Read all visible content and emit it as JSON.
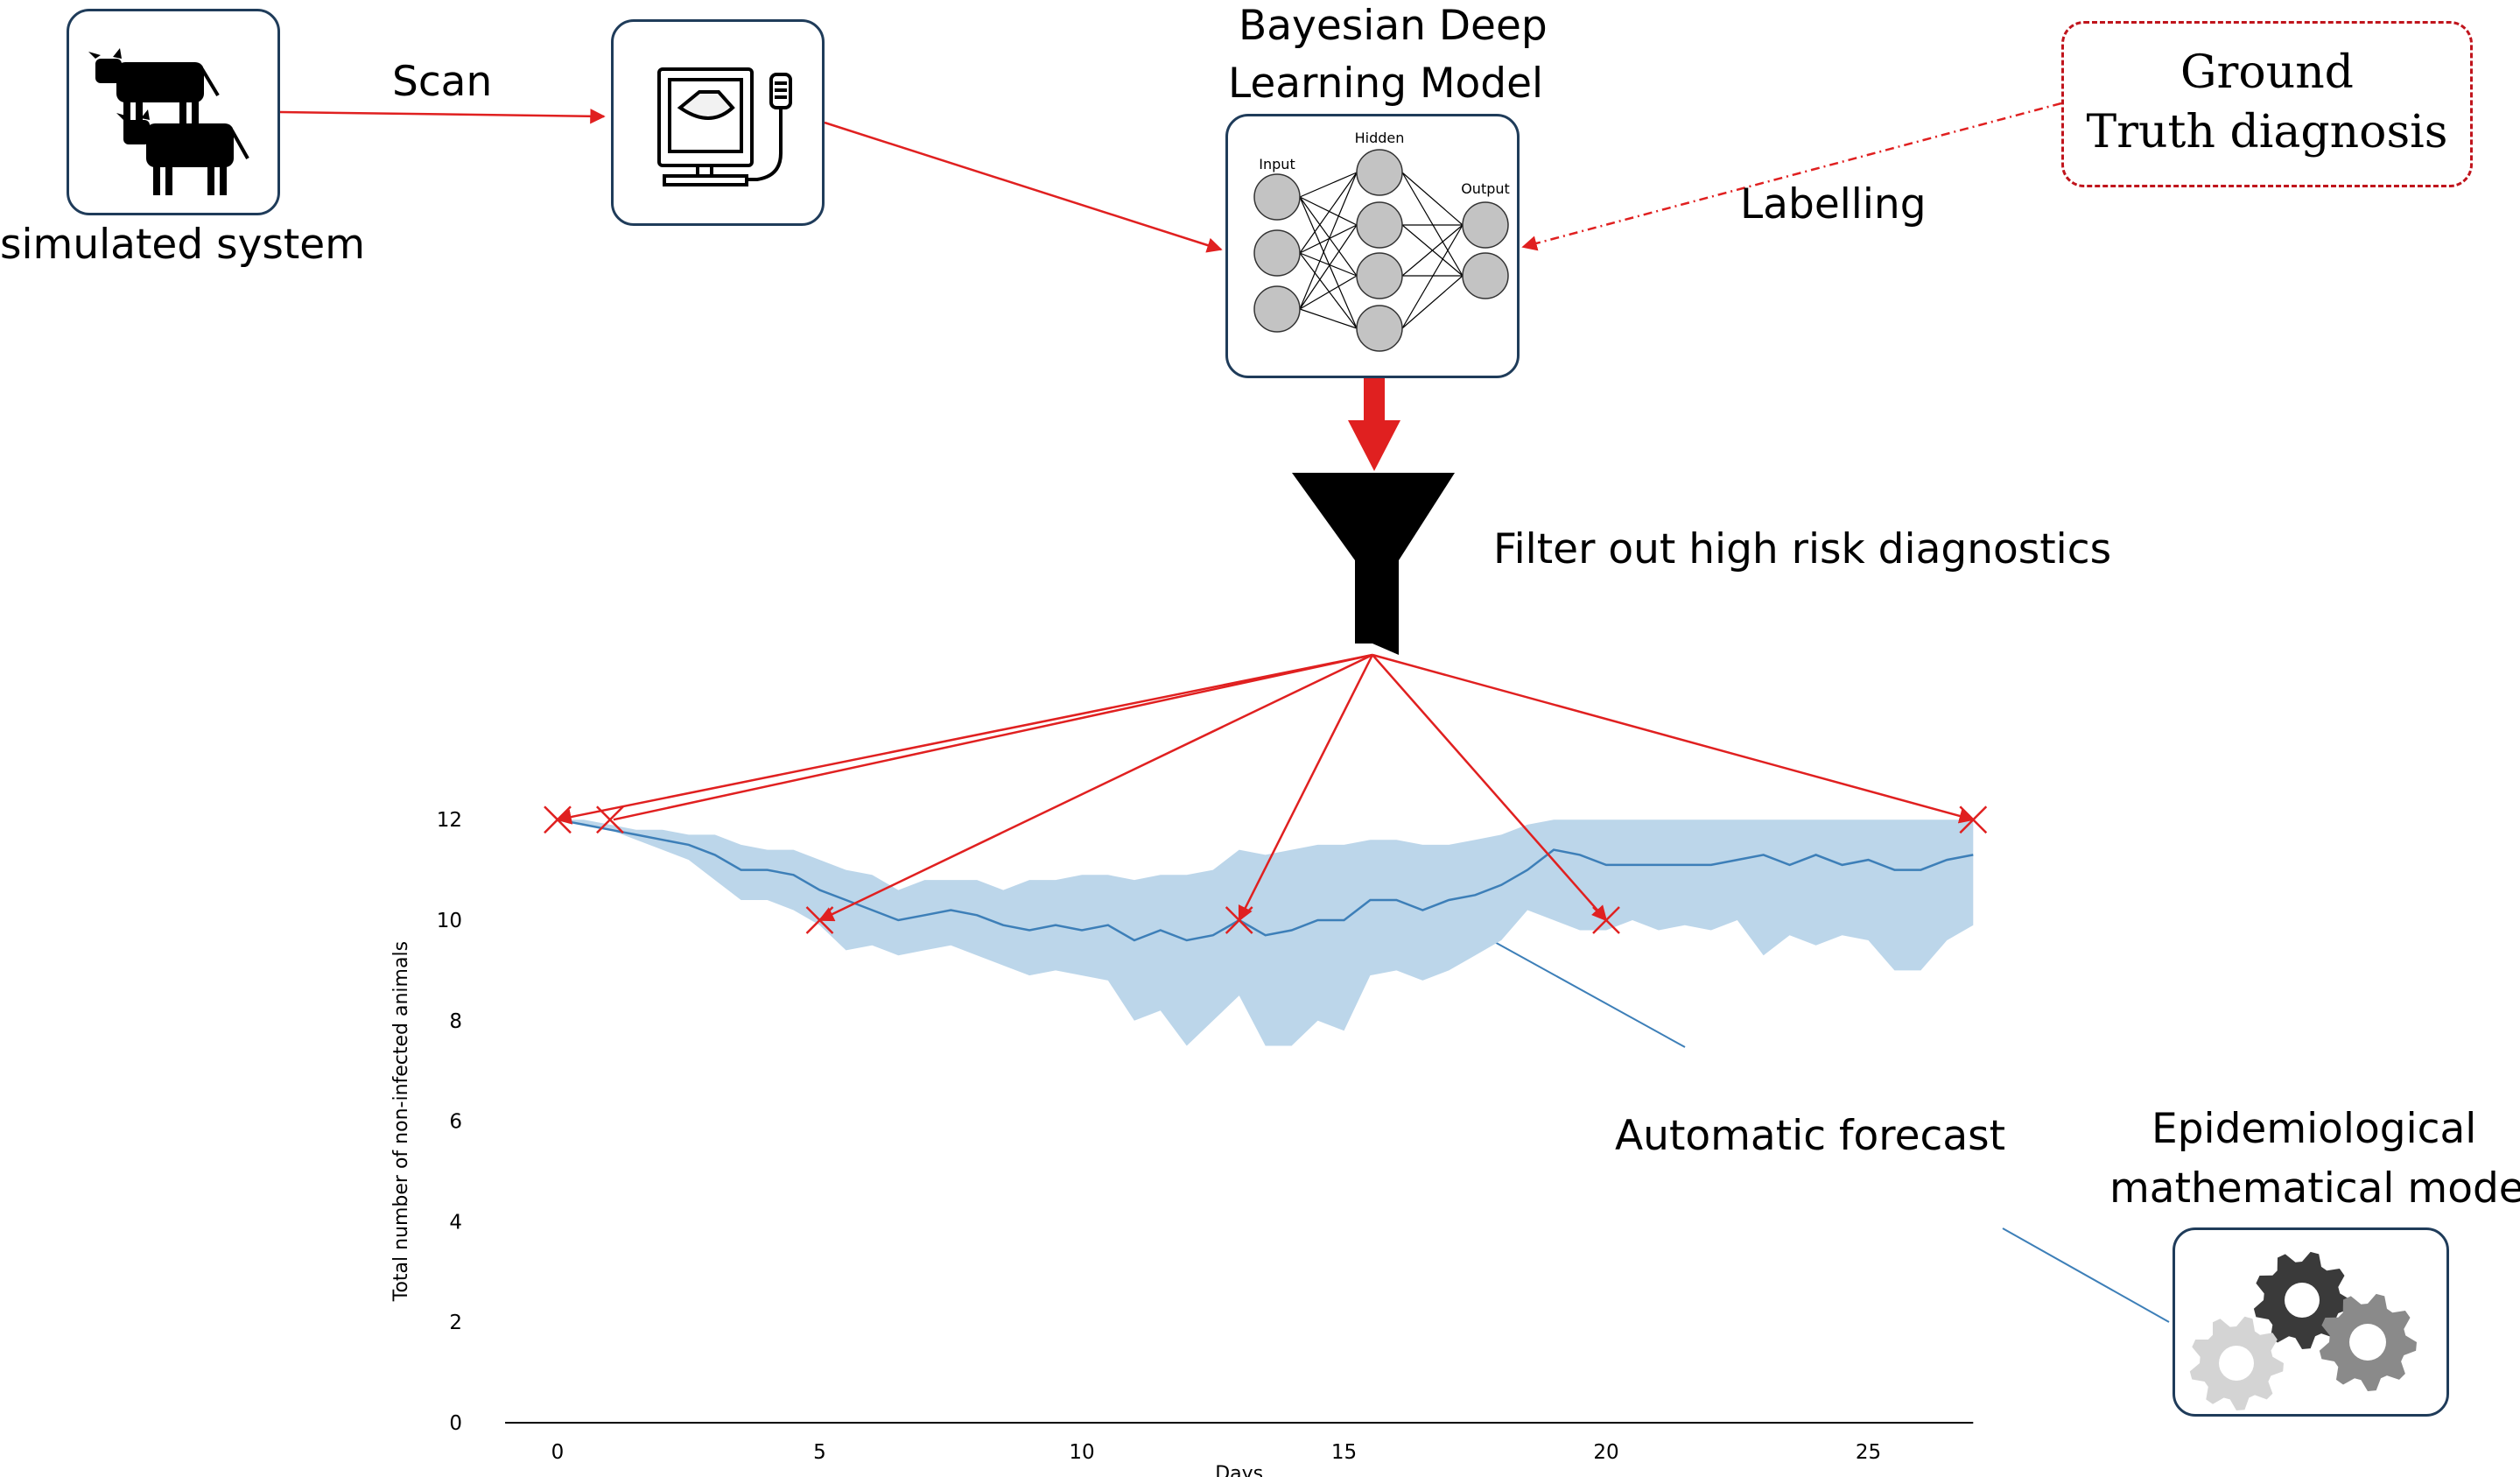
{
  "labels": {
    "simulated_system": "simulated system",
    "scan": "Scan",
    "model_title_line1": "Bayesian Deep",
    "model_title_line2": "Learning Model",
    "ground_truth_line1": "Ground",
    "ground_truth_line2": "Truth diagnosis",
    "labelling": "Labelling",
    "filter": "Filter out high risk diagnostics",
    "automatic_forecast": "Automatic forecast",
    "epi_line1": "Epidemiological",
    "epi_line2": "mathematical model"
  },
  "network": {
    "input": "Input",
    "hidden": "Hidden",
    "output": "Output"
  },
  "colors": {
    "arrow": "#e02020",
    "series": "#3d7fb8",
    "band": "#bcd6ea",
    "box_border": "#1f3c5a",
    "ground_truth_border": "#c0141c"
  },
  "icons": {
    "cows": "cow-icon",
    "scanner": "ultrasound-scanner-icon",
    "funnel": "funnel-icon",
    "gears": "gears-icon"
  },
  "chart_data": {
    "type": "line",
    "xlabel": "Days",
    "ylabel": "Total number of non-infected animals",
    "xlim": [
      -1,
      27
    ],
    "ylim": [
      0,
      12
    ],
    "x_ticks": [
      "0",
      "5",
      "10",
      "15",
      "20",
      "25"
    ],
    "y_ticks": [
      "0",
      "2",
      "4",
      "6",
      "8",
      "10",
      "12"
    ],
    "series": [
      {
        "x": [
          0,
          0.5,
          1,
          1.5,
          2,
          2.5,
          3,
          3.5,
          4,
          4.5,
          5,
          5.5,
          6,
          6.5,
          7,
          7.5,
          8,
          8.5,
          9,
          9.5,
          10,
          10.5,
          11,
          11.5,
          12,
          12.5,
          13,
          13.5,
          14,
          14.5,
          15,
          15.5,
          16,
          16.5,
          17,
          17.5,
          18,
          18.5,
          19,
          19.5,
          20,
          20.5,
          21,
          21.5,
          22,
          22.5,
          23,
          23.5,
          24,
          24.5,
          25,
          25.5,
          26,
          26.5,
          27
        ],
        "y": [
          12,
          11.9,
          11.8,
          11.7,
          11.6,
          11.5,
          11.3,
          11.0,
          11.0,
          10.9,
          10.6,
          10.4,
          10.2,
          10.0,
          10.1,
          10.2,
          10.1,
          9.9,
          9.8,
          9.9,
          9.8,
          9.9,
          9.6,
          9.8,
          9.6,
          9.7,
          10.0,
          9.7,
          9.8,
          10.0,
          10.0,
          10.4,
          10.4,
          10.2,
          10.4,
          10.5,
          10.7,
          11.0,
          11.4,
          11.3,
          11.1,
          11.1,
          11.1,
          11.1,
          11.1,
          11.2,
          11.3,
          11.1,
          11.3,
          11.1,
          11.2,
          11.0,
          11.0,
          11.2,
          11.3
        ]
      }
    ],
    "band": {
      "upper": [
        12,
        12,
        11.9,
        11.8,
        11.8,
        11.7,
        11.7,
        11.5,
        11.4,
        11.4,
        11.2,
        11.0,
        10.9,
        10.6,
        10.8,
        10.8,
        10.8,
        10.6,
        10.8,
        10.8,
        10.9,
        10.9,
        10.8,
        10.9,
        10.9,
        11.0,
        11.4,
        11.3,
        11.4,
        11.5,
        11.5,
        11.6,
        11.6,
        11.5,
        11.5,
        11.6,
        11.7,
        11.9,
        12,
        12,
        12,
        12,
        12,
        12,
        12,
        12,
        12,
        12,
        12,
        12,
        12,
        12,
        12,
        12,
        12
      ],
      "lower": [
        12,
        11.9,
        11.8,
        11.6,
        11.4,
        11.2,
        10.8,
        10.4,
        10.4,
        10.2,
        9.9,
        9.4,
        9.5,
        9.3,
        9.4,
        9.5,
        9.3,
        9.1,
        8.9,
        9.0,
        8.9,
        8.8,
        8.0,
        8.2,
        7.5,
        8.0,
        8.5,
        7.5,
        7.5,
        8.0,
        7.8,
        8.9,
        9.0,
        8.8,
        9.0,
        9.3,
        9.6,
        10.2,
        10.0,
        9.8,
        9.8,
        10.0,
        9.8,
        9.9,
        9.8,
        10.0,
        9.3,
        9.7,
        9.5,
        9.7,
        9.6,
        9.0,
        9.0,
        9.6,
        9.9
      ]
    },
    "markers": [
      {
        "x": 0,
        "y": 12
      },
      {
        "x": 1,
        "y": 12
      },
      {
        "x": 5,
        "y": 10
      },
      {
        "x": 13,
        "y": 10
      },
      {
        "x": 20,
        "y": 10
      },
      {
        "x": 27,
        "y": 12
      }
    ],
    "grid": false,
    "legend": "none"
  }
}
